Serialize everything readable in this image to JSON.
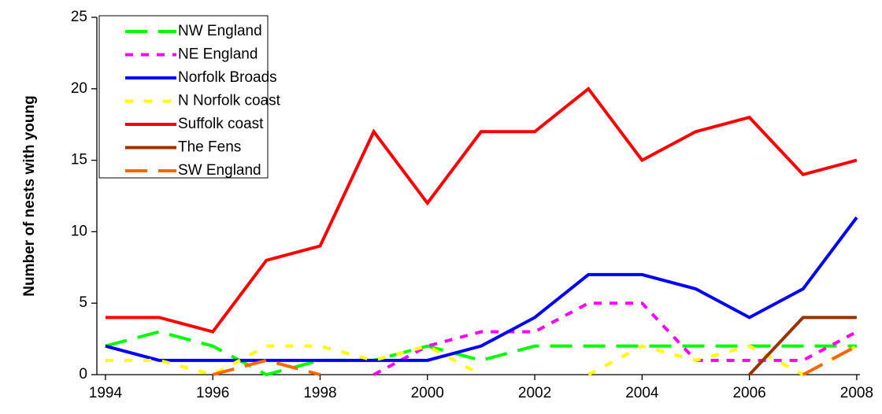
{
  "chart_data": {
    "type": "line",
    "y_label": "Number of nests with young",
    "x": [
      1994,
      1995,
      1996,
      1997,
      1998,
      1999,
      2000,
      2001,
      2002,
      2003,
      2004,
      2005,
      2006,
      2007,
      2008
    ],
    "xlim": [
      1993.84,
      2008.06
    ],
    "xticks": [
      1994,
      1996,
      1998,
      2000,
      2002,
      2004,
      2006,
      2008
    ],
    "ylim": [
      0,
      25
    ],
    "yticks": [
      0,
      5,
      10,
      15,
      20,
      25
    ],
    "grid": false,
    "legend": "top-left",
    "series": [
      {
        "name": "NW England",
        "color": "#00ff00",
        "dash": "28 14",
        "values": [
          2,
          3,
          2,
          0,
          1,
          1,
          2,
          1,
          2,
          2,
          2,
          2,
          2,
          2,
          2
        ]
      },
      {
        "name": "NE England",
        "color": "#ff00ff",
        "dash": "10 10",
        "values": [
          null,
          null,
          null,
          null,
          null,
          0,
          2,
          3,
          3,
          5,
          5,
          1,
          1,
          1,
          3
        ]
      },
      {
        "name": "Norfolk Broads",
        "color": "#0000ff",
        "dash": "none",
        "values": [
          2,
          1,
          1,
          1,
          1,
          1,
          1,
          2,
          4,
          7,
          7,
          6,
          4,
          6,
          11
        ]
      },
      {
        "name": "N Norfolk coast",
        "color": "#ffff00",
        "dash": "10 14",
        "values": [
          1,
          1,
          0,
          2,
          2,
          1,
          2,
          0,
          null,
          0,
          2,
          1,
          2,
          0,
          2
        ]
      },
      {
        "name": "Suffolk coast",
        "color": "#ff0000",
        "dash": "none",
        "values": [
          4,
          4,
          3,
          8,
          9,
          17,
          12,
          17,
          17,
          20,
          15,
          17,
          18,
          14,
          15
        ]
      },
      {
        "name": "The Fens",
        "color": "#993300",
        "dash": "none",
        "values": [
          null,
          null,
          null,
          null,
          null,
          null,
          null,
          null,
          null,
          null,
          null,
          null,
          0,
          4,
          4
        ]
      },
      {
        "name": "SW England",
        "color": "#ff6600",
        "dash": "28 14",
        "values": [
          null,
          null,
          0,
          1,
          0,
          null,
          null,
          null,
          null,
          null,
          null,
          null,
          null,
          0,
          2
        ]
      }
    ]
  }
}
